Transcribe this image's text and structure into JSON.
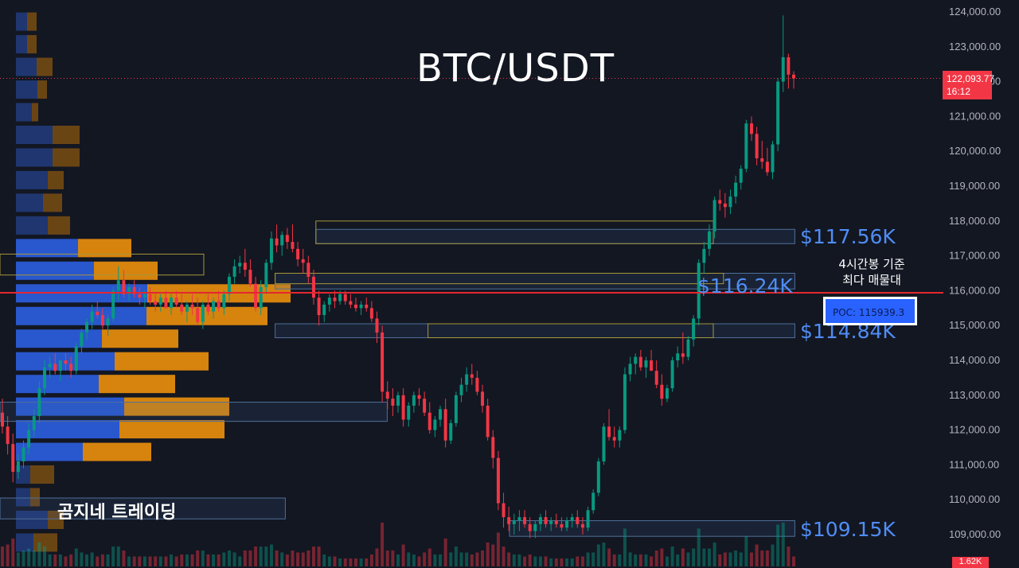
{
  "chart_data": {
    "type": "candlestick",
    "symbol": "BTC/USDT",
    "title": "BTC/USDT",
    "watermark": "곰지네 트레이딩",
    "ylim": [
      108300,
      124200
    ],
    "y_ticks": [
      "124,000.00",
      "123,000.00",
      "122,000.00",
      "121,000.00",
      "120,000.00",
      "119,000.00",
      "118,000.00",
      "117,000.00",
      "116,000.00",
      "115,000.00",
      "114,000.00",
      "113,000.00",
      "112,000.00",
      "111,000.00",
      "110,000.00",
      "109,000.00"
    ],
    "y_tick_values": [
      124000,
      123000,
      122000,
      121000,
      120000,
      119000,
      118000,
      117000,
      116000,
      115000,
      114000,
      113000,
      112000,
      111000,
      110000,
      109000
    ],
    "last_price": {
      "value": 122093.77,
      "label": "122,093.77",
      "countdown": "16:12"
    },
    "volume_tag": "1.62K",
    "poc": {
      "value": 115939.3,
      "label": "POC: 115939.3",
      "note_line1": "4시간봉 기준",
      "note_line2": "최다 매물대"
    },
    "levels": [
      {
        "value": 117560,
        "label": "$117.56K"
      },
      {
        "value": 116240,
        "label": "$116.24K"
      },
      {
        "value": 114840,
        "label": "$114.84K"
      },
      {
        "value": 109150,
        "label": "$109.15K"
      }
    ],
    "zones": [
      {
        "y1": 117760,
        "y2": 117350,
        "x_from": 0.31,
        "x_to": 0.78,
        "kind": "blue"
      },
      {
        "y1": 118000,
        "y2": 117350,
        "x_from": 0.31,
        "x_to": 0.7,
        "kind": "yellow"
      },
      {
        "y1": 116500,
        "y2": 116050,
        "x_from": 0.27,
        "x_to": 0.78,
        "kind": "blue"
      },
      {
        "y1": 116500,
        "y2": 116200,
        "x_from": 0.27,
        "x_to": 0.71,
        "kind": "yellow"
      },
      {
        "y1": 115050,
        "y2": 114650,
        "x_from": 0.27,
        "x_to": 0.78,
        "kind": "blue"
      },
      {
        "y1": 115050,
        "y2": 114650,
        "x_from": 0.42,
        "x_to": 0.7,
        "kind": "yellow"
      },
      {
        "y1": 117050,
        "y2": 116450,
        "x_from": 0.0,
        "x_to": 0.2,
        "kind": "yellow"
      },
      {
        "y1": 112800,
        "y2": 112250,
        "x_from": 0.0,
        "x_to": 0.38,
        "kind": "blue"
      },
      {
        "y1": 110050,
        "y2": 109450,
        "x_from": 0.0,
        "x_to": 0.28,
        "kind": "blue"
      },
      {
        "y1": 109400,
        "y2": 108950,
        "x_from": 0.5,
        "x_to": 0.78,
        "kind": "blue"
      }
    ],
    "volume_profile": [
      {
        "price": 123700,
        "buy": 14,
        "sell": 12
      },
      {
        "price": 123050,
        "buy": 14,
        "sell": 12
      },
      {
        "price": 122400,
        "buy": 26,
        "sell": 20
      },
      {
        "price": 121750,
        "buy": 27,
        "sell": 12
      },
      {
        "price": 121100,
        "buy": 20,
        "sell": 8
      },
      {
        "price": 120450,
        "buy": 46,
        "sell": 34
      },
      {
        "price": 119800,
        "buy": 46,
        "sell": 34
      },
      {
        "price": 119150,
        "buy": 40,
        "sell": 20
      },
      {
        "price": 118500,
        "buy": 34,
        "sell": 24
      },
      {
        "price": 117850,
        "buy": 40,
        "sell": 28
      },
      {
        "price": 117200,
        "buy": 78,
        "sell": 67
      },
      {
        "price": 116550,
        "buy": 98,
        "sell": 80
      },
      {
        "price": 115900,
        "buy": 165,
        "sell": 180
      },
      {
        "price": 115250,
        "buy": 164,
        "sell": 152
      },
      {
        "price": 114600,
        "buy": 108,
        "sell": 96
      },
      {
        "price": 113950,
        "buy": 124,
        "sell": 118
      },
      {
        "price": 113300,
        "buy": 104,
        "sell": 96
      },
      {
        "price": 112650,
        "buy": 136,
        "sell": 132
      },
      {
        "price": 112000,
        "buy": 130,
        "sell": 132
      },
      {
        "price": 111350,
        "buy": 84,
        "sell": 86
      },
      {
        "price": 110700,
        "buy": 18,
        "sell": 30
      },
      {
        "price": 110050,
        "buy": 18,
        "sell": 12
      },
      {
        "price": 109400,
        "buy": 40,
        "sell": 20
      },
      {
        "price": 108750,
        "buy": 22,
        "sell": 30
      }
    ],
    "candles": [
      [
        112500,
        112900,
        111900,
        112100
      ],
      [
        112100,
        112400,
        111300,
        111600
      ],
      [
        111600,
        111900,
        110500,
        110800
      ],
      [
        110800,
        111300,
        110600,
        111100
      ],
      [
        111100,
        111700,
        110900,
        111500
      ],
      [
        111500,
        112200,
        111300,
        112000
      ],
      [
        112000,
        112600,
        111800,
        112400
      ],
      [
        112400,
        113400,
        112200,
        113200
      ],
      [
        113200,
        114000,
        113000,
        113800
      ],
      [
        113800,
        114100,
        113500,
        113900
      ],
      [
        113900,
        114200,
        113600,
        113700
      ],
      [
        113700,
        114000,
        113400,
        114000
      ],
      [
        114000,
        114200,
        113700,
        113900
      ],
      [
        113900,
        114100,
        113500,
        113700
      ],
      [
        113700,
        114500,
        113600,
        114400
      ],
      [
        114400,
        114900,
        114200,
        114800
      ],
      [
        114800,
        115200,
        114600,
        115100
      ],
      [
        115100,
        115600,
        114900,
        115400
      ],
      [
        115400,
        115700,
        115200,
        115300
      ],
      [
        115300,
        115500,
        114900,
        115000
      ],
      [
        115000,
        115300,
        114700,
        115200
      ],
      [
        115200,
        116100,
        115100,
        116000
      ],
      [
        116000,
        116700,
        115700,
        116300
      ],
      [
        116300,
        116600,
        115800,
        115900
      ],
      [
        115900,
        116200,
        115700,
        116100
      ],
      [
        116100,
        116300,
        115800,
        115900
      ],
      [
        115900,
        116100,
        115600,
        115800
      ],
      [
        115800,
        116000,
        115500,
        115900
      ],
      [
        115900,
        116100,
        115600,
        115700
      ],
      [
        115700,
        115900,
        115400,
        115600
      ],
      [
        115600,
        115900,
        115400,
        115800
      ],
      [
        115800,
        116000,
        115500,
        115500
      ],
      [
        115500,
        115900,
        115300,
        115800
      ],
      [
        115800,
        116000,
        115500,
        115600
      ],
      [
        115600,
        115900,
        115300,
        115400
      ],
      [
        115400,
        115700,
        115100,
        115600
      ],
      [
        115600,
        115900,
        115300,
        115500
      ],
      [
        115500,
        115800,
        115000,
        115100
      ],
      [
        115100,
        115700,
        114900,
        115600
      ],
      [
        115600,
        115900,
        115300,
        115400
      ],
      [
        115400,
        115800,
        115200,
        115700
      ],
      [
        115700,
        116000,
        115400,
        115500
      ],
      [
        115500,
        116000,
        115300,
        115900
      ],
      [
        115900,
        116500,
        115700,
        116400
      ],
      [
        116400,
        116900,
        116200,
        116700
      ],
      [
        116700,
        117000,
        116500,
        116800
      ],
      [
        116800,
        117200,
        116400,
        116600
      ],
      [
        116600,
        116900,
        116100,
        116200
      ],
      [
        116200,
        116400,
        115400,
        115500
      ],
      [
        115500,
        116300,
        115300,
        116100
      ],
      [
        116100,
        116900,
        115900,
        116800
      ],
      [
        116800,
        117700,
        116600,
        117500
      ],
      [
        117500,
        117900,
        117100,
        117300
      ],
      [
        117300,
        117700,
        117000,
        117600
      ],
      [
        117600,
        117800,
        117200,
        117400
      ],
      [
        117400,
        117900,
        117100,
        117200
      ],
      [
        117200,
        117400,
        116700,
        116900
      ],
      [
        116900,
        117200,
        116500,
        116800
      ],
      [
        116800,
        117000,
        116200,
        116400
      ],
      [
        116400,
        116600,
        115600,
        115800
      ],
      [
        115800,
        116000,
        115000,
        115300
      ],
      [
        115300,
        115700,
        115100,
        115600
      ],
      [
        115600,
        115900,
        115400,
        115800
      ],
      [
        115800,
        116000,
        115500,
        115700
      ],
      [
        115700,
        116000,
        115600,
        115900
      ],
      [
        115900,
        116000,
        115600,
        115700
      ],
      [
        115700,
        115900,
        115500,
        115600
      ],
      [
        115600,
        115800,
        115400,
        115500
      ],
      [
        115500,
        115700,
        115300,
        115600
      ],
      [
        115600,
        115800,
        115400,
        115500
      ],
      [
        115500,
        115700,
        115100,
        115200
      ],
      [
        115200,
        115400,
        114500,
        114800
      ],
      [
        114800,
        115000,
        112800,
        113100
      ],
      [
        113100,
        113400,
        112600,
        112900
      ],
      [
        112900,
        113200,
        112400,
        112700
      ],
      [
        112700,
        113100,
        112500,
        113000
      ],
      [
        113000,
        113200,
        112100,
        112300
      ],
      [
        112300,
        112800,
        112100,
        112700
      ],
      [
        112700,
        113100,
        112500,
        113000
      ],
      [
        113000,
        113200,
        112700,
        112900
      ],
      [
        112900,
        113100,
        112400,
        112500
      ],
      [
        112500,
        112800,
        111900,
        112000
      ],
      [
        112000,
        112400,
        111800,
        112300
      ],
      [
        112300,
        112700,
        112100,
        112600
      ],
      [
        112600,
        112900,
        111500,
        111700
      ],
      [
        111700,
        112300,
        111600,
        112200
      ],
      [
        112200,
        113100,
        112100,
        113000
      ],
      [
        113000,
        113500,
        112800,
        113300
      ],
      [
        113300,
        113800,
        113100,
        113600
      ],
      [
        113600,
        113900,
        113300,
        113500
      ],
      [
        113500,
        113700,
        113000,
        113100
      ],
      [
        113100,
        113300,
        112500,
        112700
      ],
      [
        112700,
        112900,
        111700,
        111800
      ],
      [
        111800,
        112000,
        110900,
        111200
      ],
      [
        111200,
        111400,
        109700,
        109900
      ],
      [
        109900,
        110200,
        109200,
        109500
      ],
      [
        109500,
        109800,
        109100,
        109300
      ],
      [
        109300,
        109600,
        109000,
        109400
      ],
      [
        109400,
        109700,
        109100,
        109500
      ],
      [
        109500,
        109700,
        109200,
        109300
      ],
      [
        109300,
        109500,
        108900,
        109100
      ],
      [
        109100,
        109400,
        108900,
        109300
      ],
      [
        109300,
        109600,
        109100,
        109500
      ],
      [
        109500,
        109700,
        109200,
        109300
      ],
      [
        109300,
        109500,
        109100,
        109400
      ],
      [
        109400,
        109600,
        109200,
        109300
      ],
      [
        109300,
        109500,
        109100,
        109200
      ],
      [
        109200,
        109500,
        109100,
        109400
      ],
      [
        109400,
        109600,
        109200,
        109500
      ],
      [
        109500,
        109700,
        109200,
        109300
      ],
      [
        109300,
        109500,
        109000,
        109200
      ],
      [
        109200,
        109800,
        109100,
        109700
      ],
      [
        109700,
        110300,
        109600,
        110200
      ],
      [
        110200,
        111200,
        110100,
        111100
      ],
      [
        111100,
        112200,
        111000,
        112100
      ],
      [
        112100,
        112600,
        111700,
        111800
      ],
      [
        111800,
        112100,
        111500,
        111700
      ],
      [
        111700,
        112100,
        111500,
        112000
      ],
      [
        112000,
        113800,
        111900,
        113600
      ],
      [
        113600,
        114100,
        113400,
        113900
      ],
      [
        113900,
        114200,
        113600,
        114100
      ],
      [
        114100,
        114300,
        113700,
        113800
      ],
      [
        113800,
        114100,
        113500,
        114000
      ],
      [
        114000,
        114300,
        113800,
        113700
      ],
      [
        113700,
        114000,
        113200,
        113300
      ],
      [
        113300,
        113600,
        112700,
        112900
      ],
      [
        112900,
        113300,
        112800,
        113200
      ],
      [
        113200,
        114100,
        113100,
        114000
      ],
      [
        114000,
        114400,
        113800,
        114200
      ],
      [
        114200,
        114800,
        113900,
        114100
      ],
      [
        114100,
        114700,
        114000,
        114600
      ],
      [
        114600,
        115300,
        114400,
        115200
      ],
      [
        115200,
        116900,
        115000,
        116800
      ],
      [
        116800,
        117400,
        116500,
        117200
      ],
      [
        117200,
        117900,
        117000,
        117700
      ],
      [
        117700,
        118700,
        117500,
        118600
      ],
      [
        118600,
        118900,
        118300,
        118500
      ],
      [
        118500,
        118800,
        118100,
        118400
      ],
      [
        118400,
        118900,
        118200,
        118700
      ],
      [
        118700,
        119300,
        118500,
        119100
      ],
      [
        119100,
        119600,
        118900,
        119500
      ],
      [
        119500,
        120900,
        119400,
        120800
      ],
      [
        120800,
        121000,
        120300,
        120500
      ],
      [
        120500,
        120700,
        119600,
        119800
      ],
      [
        119800,
        120300,
        119500,
        119700
      ],
      [
        119700,
        120100,
        119300,
        119400
      ],
      [
        119400,
        120300,
        119200,
        120200
      ],
      [
        120200,
        122100,
        120000,
        122000
      ],
      [
        122000,
        123900,
        121700,
        122700
      ],
      [
        122700,
        122800,
        121800,
        122200
      ],
      [
        122200,
        122300,
        121800,
        122094
      ]
    ]
  }
}
